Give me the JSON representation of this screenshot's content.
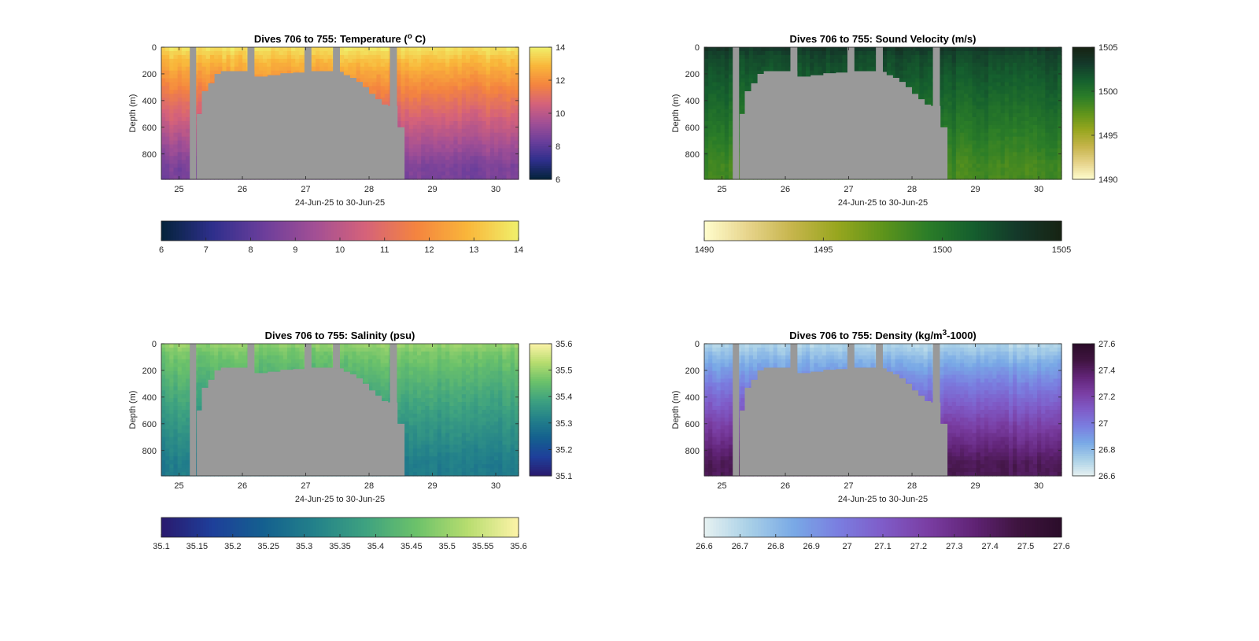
{
  "chart_data": [
    {
      "type": "heatmap",
      "title": "Dives 706 to 755: Temperature (",
      "title_sup": "o",
      "title_tail": " C)",
      "xlabel": "24-Jun-25 to 30-Jun-25",
      "ylabel": "Depth (m)",
      "xlim": [
        24.72,
        30.36
      ],
      "ylim": [
        0,
        990
      ],
      "y_reversed": true,
      "x_ticks": [
        "25",
        "26",
        "27",
        "28",
        "29",
        "30"
      ],
      "y_ticks": [
        "0",
        "200",
        "400",
        "600",
        "800"
      ],
      "colormap": "thermal",
      "colormap_stops": [
        "#04233a",
        "#2e2f8c",
        "#6b3e9b",
        "#a24f95",
        "#d5627a",
        "#f4843f",
        "#f9b63a",
        "#f0f06b"
      ],
      "clim": [
        6,
        14
      ],
      "side_colorbar_ticks": [
        "14",
        "12",
        "10",
        "8",
        "6"
      ],
      "bottom_colorbar_ticks": [
        "6",
        "7",
        "8",
        "9",
        "10",
        "11",
        "12",
        "13",
        "14"
      ],
      "surface_value": 13.3,
      "deep_value": 8.6,
      "grid": false
    },
    {
      "type": "heatmap",
      "title": "Dives 706 to 755: Sound Velocity (m/s)",
      "xlabel": "24-Jun-25 to 30-Jun-25",
      "ylabel": "Depth (m)",
      "xlim": [
        24.72,
        30.36
      ],
      "ylim": [
        0,
        990
      ],
      "y_reversed": true,
      "x_ticks": [
        "25",
        "26",
        "27",
        "28",
        "29",
        "30"
      ],
      "y_ticks": [
        "0",
        "200",
        "400",
        "600",
        "800"
      ],
      "colormap": "speed",
      "colormap_stops": [
        "#fffdcd",
        "#e6d38a",
        "#c5b44a",
        "#96a61e",
        "#5e941b",
        "#2b7d28",
        "#155f2e",
        "#14392a",
        "#172313"
      ],
      "clim": [
        1490,
        1505
      ],
      "side_colorbar_ticks": [
        "1505",
        "1500",
        "1495",
        "1490"
      ],
      "bottom_colorbar_ticks": [
        "1490",
        "1495",
        "1500",
        "1505"
      ],
      "surface_value": 1502.5,
      "deep_value": 1498.5,
      "grid": false
    },
    {
      "type": "heatmap",
      "title": "Dives 706 to 755: Salinity (psu)",
      "xlabel": "24-Jun-25 to 30-Jun-25",
      "ylabel": "Depth (m)",
      "xlim": [
        24.72,
        30.36
      ],
      "ylim": [
        0,
        990
      ],
      "y_reversed": true,
      "x_ticks": [
        "25",
        "26",
        "27",
        "28",
        "29",
        "30"
      ],
      "y_ticks": [
        "0",
        "200",
        "400",
        "600",
        "800"
      ],
      "colormap": "haline",
      "colormap_stops": [
        "#2a1a6e",
        "#1e3f9a",
        "#14608f",
        "#23818a",
        "#3ea280",
        "#6cc26a",
        "#b7dd6f",
        "#fdf3a8"
      ],
      "clim": [
        35.1,
        35.6
      ],
      "side_colorbar_ticks": [
        "35.6",
        "35.5",
        "35.4",
        "35.3",
        "35.2",
        "35.1"
      ],
      "bottom_colorbar_ticks": [
        "35.1",
        "35.15",
        "35.2",
        "35.25",
        "35.3",
        "35.35",
        "35.4",
        "35.45",
        "35.5",
        "35.55",
        "35.6"
      ],
      "surface_value": 35.47,
      "deep_value": 35.3,
      "grid": false
    },
    {
      "type": "heatmap",
      "title": "Dives 706 to 755: Density (kg/m",
      "title_sup": "3",
      "title_tail": "-1000)",
      "xlabel": "24-Jun-25 to 30-Jun-25",
      "ylabel": "Depth (m)",
      "xlim": [
        24.72,
        30.36
      ],
      "ylim": [
        0,
        990
      ],
      "y_reversed": true,
      "x_ticks": [
        "25",
        "26",
        "27",
        "28",
        "29",
        "30"
      ],
      "y_ticks": [
        "0",
        "200",
        "400",
        "600",
        "800"
      ],
      "colormap": "dense",
      "colormap_stops": [
        "#e6f1f1",
        "#a9d0e7",
        "#79a9e6",
        "#7a7ee0",
        "#7f5cc8",
        "#7a3ea3",
        "#612477",
        "#3f1440",
        "#2b0d2a"
      ],
      "clim": [
        26.6,
        27.6
      ],
      "side_colorbar_ticks": [
        "27.6",
        "27.4",
        "27.2",
        "27",
        "26.8",
        "26.6"
      ],
      "bottom_colorbar_ticks": [
        "26.6",
        "26.7",
        "26.8",
        "26.9",
        "27",
        "27.1",
        "27.2",
        "27.3",
        "27.4",
        "27.5",
        "27.6"
      ],
      "surface_value": 26.75,
      "deep_value": 27.42,
      "grid": false
    }
  ],
  "bathymetry": {
    "no_data_color": "#999999",
    "gaps": [
      [
        25.17,
        25.27
      ],
      [
        26.08,
        26.19
      ],
      [
        26.98,
        27.09
      ],
      [
        27.43,
        27.54
      ],
      [
        28.33,
        28.44
      ]
    ],
    "profile": [
      [
        25.17,
        990
      ],
      [
        25.27,
        990
      ],
      [
        25.28,
        500
      ],
      [
        25.35,
        500
      ],
      [
        25.36,
        330
      ],
      [
        25.45,
        330
      ],
      [
        25.46,
        270
      ],
      [
        25.55,
        270
      ],
      [
        25.56,
        200
      ],
      [
        25.65,
        200
      ],
      [
        25.66,
        180
      ],
      [
        26.08,
        180
      ],
      [
        26.19,
        220
      ],
      [
        26.4,
        210
      ],
      [
        26.6,
        195
      ],
      [
        26.8,
        190
      ],
      [
        27.0,
        180
      ],
      [
        27.15,
        180
      ],
      [
        27.3,
        180
      ],
      [
        27.45,
        185
      ],
      [
        27.6,
        210
      ],
      [
        27.7,
        230
      ],
      [
        27.8,
        260
      ],
      [
        27.9,
        300
      ],
      [
        28.0,
        350
      ],
      [
        28.1,
        390
      ],
      [
        28.2,
        430
      ],
      [
        28.3,
        440
      ],
      [
        28.45,
        600
      ],
      [
        28.55,
        600
      ],
      [
        28.56,
        990
      ]
    ]
  }
}
